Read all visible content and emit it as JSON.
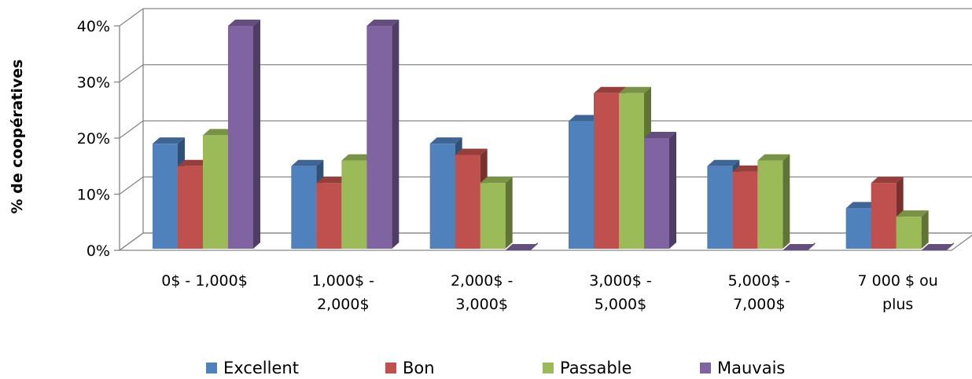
{
  "chart_data": {
    "type": "bar",
    "style": "3d-clustered-column",
    "categories": [
      [
        "0$ - 1,000$"
      ],
      [
        "1,000$ -",
        "2,000$"
      ],
      [
        "2,000$ -",
        "3,000$"
      ],
      [
        "3,000$ -",
        "5,000$"
      ],
      [
        "5,000$ -",
        "7,000$"
      ],
      [
        "7 000 $ ou",
        "plus"
      ]
    ],
    "series": [
      {
        "name": "Excellent",
        "color": "#4F81BD",
        "values": [
          19,
          15,
          19,
          23,
          15,
          7.5
        ]
      },
      {
        "name": "Bon",
        "color": "#C0504D",
        "values": [
          15,
          12,
          17,
          28,
          14,
          12
        ]
      },
      {
        "name": "Passable",
        "color": "#9BBB59",
        "values": [
          20.5,
          16,
          12,
          28,
          16,
          6
        ]
      },
      {
        "name": "Mauvais",
        "color": "#8064A2",
        "values": [
          40,
          40,
          0,
          20,
          0,
          0
        ]
      }
    ],
    "ylabel": "% de coopératives",
    "xlabel": "",
    "ylim": [
      0,
      40
    ],
    "yticks": [
      0,
      10,
      20,
      30,
      40
    ],
    "ytick_labels": [
      "0%",
      "10%",
      "20%",
      "30%",
      "40%"
    ],
    "grid": true,
    "legend_position": "bottom"
  }
}
